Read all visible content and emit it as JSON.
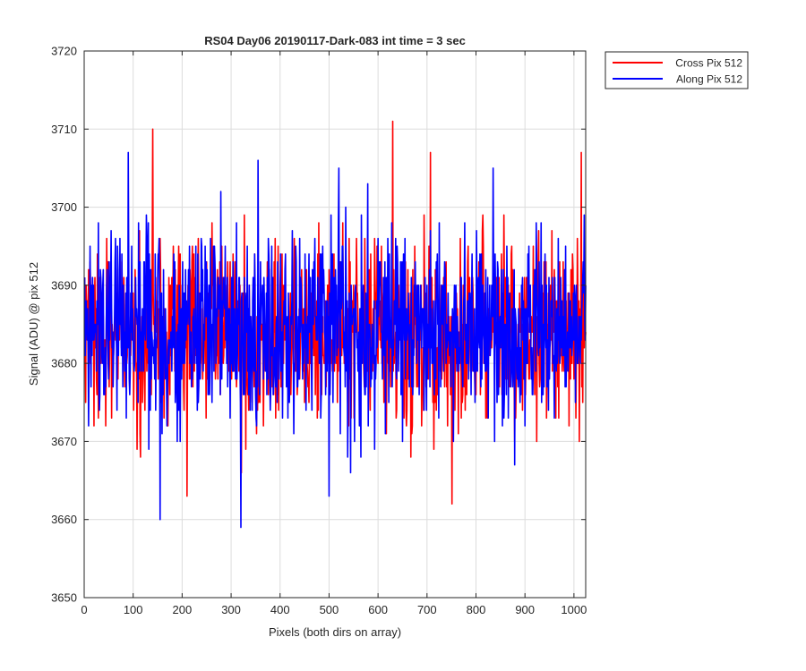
{
  "chart_data": {
    "type": "line",
    "title": "RS04 Day06 20190117-Dark-083 int time = 3 sec",
    "xlabel": "Pixels (both dirs on array)",
    "ylabel": "Signal (ADU) @ pix 512",
    "xlim": [
      0,
      1024
    ],
    "ylim": [
      3650,
      3720
    ],
    "xticks": [
      0,
      100,
      200,
      300,
      400,
      500,
      600,
      700,
      800,
      900,
      1000
    ],
    "yticks": [
      3650,
      3660,
      3670,
      3680,
      3690,
      3700,
      3710,
      3720
    ],
    "xtick_labels": [
      "0",
      "100",
      "200",
      "300",
      "400",
      "500",
      "600",
      "700",
      "800",
      "900",
      "1000"
    ],
    "ytick_labels": [
      "3650",
      "3660",
      "3670",
      "3680",
      "3690",
      "3700",
      "3710",
      "3720"
    ],
    "grid": true,
    "legend_position": "outside-top-right",
    "series": [
      {
        "name": "Cross Pix 512",
        "color": "#ff0000",
        "x_start": 1,
        "x_step": 1,
        "mean": 3684,
        "min": 3662,
        "max": 3711,
        "extremes": [
          [
            140,
            3710
          ],
          [
            630,
            3711
          ],
          [
            707,
            3707
          ],
          [
            1015,
            3707
          ],
          [
            751,
            3662
          ],
          [
            210,
            3663
          ],
          [
            20,
            3672
          ]
        ]
      },
      {
        "name": "Along Pix 512",
        "color": "#0000ff",
        "x_start": 1,
        "x_step": 1,
        "mean": 3684,
        "min": 3659,
        "max": 3707,
        "extremes": [
          [
            90,
            3707
          ],
          [
            355,
            3706
          ],
          [
            520,
            3705
          ],
          [
            835,
            3705
          ],
          [
            320,
            3659
          ],
          [
            155,
            3660
          ],
          [
            500,
            3663
          ]
        ]
      }
    ]
  }
}
